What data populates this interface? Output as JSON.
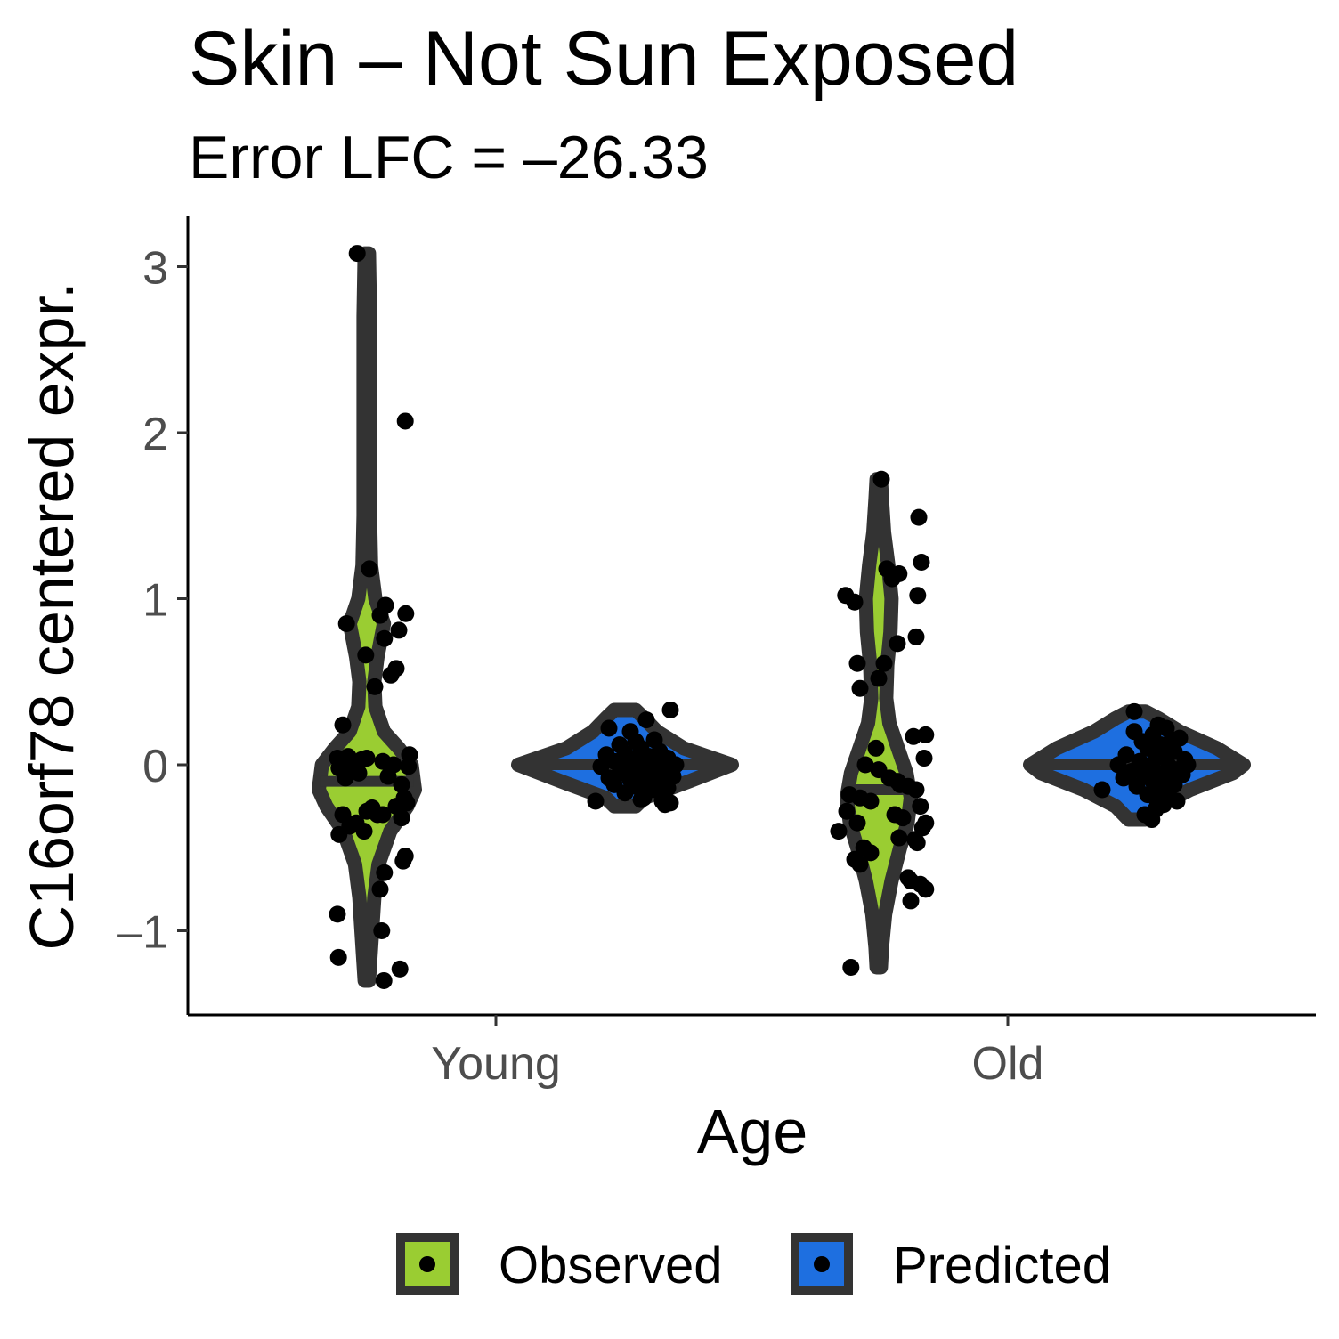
{
  "chart_data": {
    "type": "violin",
    "title": "Skin – Not Sun Exposed",
    "subtitle": "Error LFC = –26.33",
    "xlabel": "Age",
    "ylabel": "C16orf78 centered expr.",
    "categories": [
      "Young",
      "Old"
    ],
    "ylim": [
      -1.5,
      3.3
    ],
    "yticks": [
      -1,
      0,
      1,
      2,
      3
    ],
    "ytick_labels": [
      "–1",
      "0",
      "1",
      "2",
      "3"
    ],
    "grid": false,
    "legend_position": "bottom",
    "colors": {
      "Observed": "#9acd32",
      "Predicted": "#1e6fe0",
      "outline": "#333333",
      "points": "#000000"
    },
    "series": [
      {
        "name": "Observed",
        "violins": [
          {
            "category": "Young",
            "median": -0.1,
            "min": -1.3,
            "max": 3.08,
            "density": [
              [
                -1.3,
                0.02
              ],
              [
                -1.2,
                0.03
              ],
              [
                -1.0,
                0.05
              ],
              [
                -0.8,
                0.07
              ],
              [
                -0.6,
                0.11
              ],
              [
                -0.4,
                0.22
              ],
              [
                -0.25,
                0.38
              ],
              [
                -0.15,
                0.45
              ],
              [
                0.0,
                0.42
              ],
              [
                0.1,
                0.3
              ],
              [
                0.2,
                0.16
              ],
              [
                0.35,
                0.08
              ],
              [
                0.5,
                0.07
              ],
              [
                0.65,
                0.1
              ],
              [
                0.85,
                0.16
              ],
              [
                1.0,
                0.08
              ],
              [
                1.2,
                0.04
              ],
              [
                1.5,
                0.03
              ],
              [
                2.0,
                0.03
              ],
              [
                2.3,
                0.03
              ],
              [
                2.7,
                0.03
              ],
              [
                3.08,
                0.02
              ]
            ],
            "points": [
              [
                3.08,
                -0.18
              ],
              [
                2.07,
                0.72
              ],
              [
                1.18,
                0.05
              ],
              [
                0.96,
                0.35
              ],
              [
                0.9,
                0.25
              ],
              [
                0.91,
                0.73
              ],
              [
                0.85,
                -0.38
              ],
              [
                0.81,
                0.6
              ],
              [
                0.76,
                0.33
              ],
              [
                0.66,
                -0.02
              ],
              [
                0.58,
                0.55
              ],
              [
                0.54,
                0.45
              ],
              [
                0.47,
                0.15
              ],
              [
                0.24,
                -0.45
              ],
              [
                0.06,
                0.8
              ],
              [
                0.04,
                -0.55
              ],
              [
                0.05,
                -0.35
              ],
              [
                0.03,
                -0.1
              ],
              [
                0.04,
                0.0
              ],
              [
                0.02,
                0.3
              ],
              [
                0.0,
                0.5
              ],
              [
                -0.01,
                0.78
              ],
              [
                -0.02,
                -0.52
              ],
              [
                -0.03,
                -0.25
              ],
              [
                -0.05,
                -0.15
              ],
              [
                -0.07,
                0.4
              ],
              [
                -0.08,
                -0.4
              ],
              [
                -0.12,
                0.65
              ],
              [
                -0.2,
                0.7
              ],
              [
                -0.23,
                0.75
              ],
              [
                -0.25,
                0.55
              ],
              [
                -0.26,
                0.1
              ],
              [
                -0.28,
                0.0
              ],
              [
                -0.3,
                -0.45
              ],
              [
                -0.3,
                0.3
              ],
              [
                -0.32,
                0.65
              ],
              [
                -0.35,
                -0.2
              ],
              [
                -0.37,
                -0.32
              ],
              [
                -0.4,
                -0.05
              ],
              [
                -0.42,
                -0.52
              ],
              [
                -0.55,
                0.72
              ],
              [
                -0.58,
                0.68
              ],
              [
                -0.65,
                0.33
              ],
              [
                -0.75,
                0.25
              ],
              [
                -0.9,
                -0.55
              ],
              [
                -1.0,
                0.28
              ],
              [
                -1.16,
                -0.53
              ],
              [
                -1.23,
                0.62
              ],
              [
                -1.3,
                0.32
              ],
              [
                -0.3,
                0.2
              ]
            ]
          },
          {
            "category": "Old",
            "median": -0.15,
            "min": -1.22,
            "max": 1.72,
            "density": [
              [
                -1.22,
                0.02
              ],
              [
                -1.1,
                0.03
              ],
              [
                -0.9,
                0.06
              ],
              [
                -0.7,
                0.12
              ],
              [
                -0.5,
                0.2
              ],
              [
                -0.35,
                0.27
              ],
              [
                -0.2,
                0.3
              ],
              [
                -0.05,
                0.26
              ],
              [
                0.1,
                0.18
              ],
              [
                0.25,
                0.1
              ],
              [
                0.4,
                0.07
              ],
              [
                0.6,
                0.08
              ],
              [
                0.8,
                0.11
              ],
              [
                1.0,
                0.12
              ],
              [
                1.2,
                0.09
              ],
              [
                1.4,
                0.05
              ],
              [
                1.6,
                0.03
              ],
              [
                1.72,
                0.02
              ]
            ],
            "points": [
              [
                1.72,
                0.05
              ],
              [
                1.49,
                0.75
              ],
              [
                1.22,
                0.8
              ],
              [
                1.18,
                0.15
              ],
              [
                1.15,
                0.38
              ],
              [
                1.12,
                0.25
              ],
              [
                1.02,
                -0.62
              ],
              [
                1.02,
                0.73
              ],
              [
                0.98,
                -0.45
              ],
              [
                0.77,
                0.7
              ],
              [
                0.73,
                0.35
              ],
              [
                0.61,
                -0.4
              ],
              [
                0.61,
                0.1
              ],
              [
                0.52,
                0.0
              ],
              [
                0.46,
                -0.35
              ],
              [
                0.18,
                0.88
              ],
              [
                0.17,
                0.65
              ],
              [
                0.1,
                -0.05
              ],
              [
                0.04,
                0.85
              ],
              [
                0.0,
                -0.25
              ],
              [
                -0.03,
                0.0
              ],
              [
                -0.08,
                0.2
              ],
              [
                -0.1,
                0.35
              ],
              [
                -0.12,
                0.4
              ],
              [
                -0.13,
                0.55
              ],
              [
                -0.15,
                0.7
              ],
              [
                -0.18,
                -0.55
              ],
              [
                -0.2,
                -0.35
              ],
              [
                -0.22,
                -0.15
              ],
              [
                -0.25,
                0.78
              ],
              [
                -0.28,
                -0.6
              ],
              [
                -0.3,
                0.3
              ],
              [
                -0.32,
                0.45
              ],
              [
                -0.35,
                -0.4
              ],
              [
                -0.35,
                0.88
              ],
              [
                -0.38,
                0.82
              ],
              [
                -0.4,
                -0.75
              ],
              [
                -0.44,
                0.38
              ],
              [
                -0.47,
                0.72
              ],
              [
                -0.5,
                -0.28
              ],
              [
                -0.53,
                -0.15
              ],
              [
                -0.57,
                -0.45
              ],
              [
                -0.6,
                -0.35
              ],
              [
                -0.68,
                0.55
              ],
              [
                -0.7,
                0.6
              ],
              [
                -0.72,
                0.78
              ],
              [
                -0.75,
                0.88
              ],
              [
                -0.82,
                0.6
              ],
              [
                -1.22,
                -0.52
              ],
              [
                -0.45,
                0.68
              ]
            ]
          }
        ]
      },
      {
        "name": "Predicted",
        "violins": [
          {
            "category": "Young",
            "median": 0.0,
            "min": -0.25,
            "max": 0.33,
            "density": [
              [
                -0.25,
                0.1
              ],
              [
                -0.2,
                0.18
              ],
              [
                -0.1,
                0.6
              ],
              [
                0.0,
                1.0
              ],
              [
                0.1,
                0.55
              ],
              [
                0.2,
                0.3
              ],
              [
                0.28,
                0.18
              ],
              [
                0.33,
                0.1
              ]
            ],
            "points": [
              [
                0.33,
                0.85
              ],
              [
                0.27,
                0.4
              ],
              [
                0.22,
                -0.3
              ],
              [
                0.2,
                0.1
              ],
              [
                0.15,
                0.55
              ],
              [
                0.14,
                0.2
              ],
              [
                0.12,
                -0.1
              ],
              [
                0.1,
                0.3
              ],
              [
                0.08,
                0.65
              ],
              [
                0.07,
                0.0
              ],
              [
                0.06,
                -0.35
              ],
              [
                0.05,
                0.45
              ],
              [
                0.04,
                0.8
              ],
              [
                0.03,
                0.15
              ],
              [
                0.02,
                -0.2
              ],
              [
                0.01,
                0.6
              ],
              [
                0.0,
                0.35
              ],
              [
                -0.01,
                -0.45
              ],
              [
                -0.02,
                0.05
              ],
              [
                -0.03,
                0.75
              ],
              [
                -0.04,
                0.25
              ],
              [
                -0.05,
                -0.1
              ],
              [
                -0.06,
                0.5
              ],
              [
                -0.07,
                0.9
              ],
              [
                -0.08,
                -0.3
              ],
              [
                -0.09,
                0.1
              ],
              [
                -0.1,
                0.65
              ],
              [
                -0.11,
                0.4
              ],
              [
                -0.12,
                -0.2
              ],
              [
                -0.13,
                0.2
              ],
              [
                -0.14,
                0.8
              ],
              [
                -0.15,
                0.55
              ],
              [
                -0.17,
                0.0
              ],
              [
                -0.2,
                0.35
              ],
              [
                -0.21,
                0.3
              ],
              [
                -0.22,
                -0.55
              ],
              [
                -0.22,
                0.7
              ],
              [
                -0.23,
                0.85
              ],
              [
                -0.24,
                0.75
              ],
              [
                0.0,
                0.95
              ]
            ]
          },
          {
            "category": "Old",
            "median": 0.0,
            "min": -0.33,
            "max": 0.32,
            "density": [
              [
                -0.33,
                0.08
              ],
              [
                -0.25,
                0.2
              ],
              [
                -0.15,
                0.5
              ],
              [
                -0.05,
                0.9
              ],
              [
                0.0,
                1.0
              ],
              [
                0.1,
                0.75
              ],
              [
                0.2,
                0.4
              ],
              [
                0.28,
                0.2
              ],
              [
                0.32,
                0.08
              ]
            ],
            "points": [
              [
                0.32,
                -0.05
              ],
              [
                0.24,
                0.4
              ],
              [
                0.22,
                0.55
              ],
              [
                0.2,
                -0.05
              ],
              [
                0.18,
                0.3
              ],
              [
                0.16,
                0.8
              ],
              [
                0.15,
                0.65
              ],
              [
                0.14,
                0.1
              ],
              [
                0.12,
                0.45
              ],
              [
                0.1,
                0.2
              ],
              [
                0.08,
                0.7
              ],
              [
                0.06,
                -0.2
              ],
              [
                0.05,
                0.5
              ],
              [
                0.04,
                0.35
              ],
              [
                0.03,
                0.9
              ],
              [
                0.02,
                0.05
              ],
              [
                0.0,
                -0.35
              ],
              [
                -0.01,
                0.6
              ],
              [
                -0.02,
                0.25
              ],
              [
                -0.03,
                0.75
              ],
              [
                -0.04,
                -0.1
              ],
              [
                -0.05,
                0.4
              ],
              [
                -0.06,
                0.85
              ],
              [
                -0.07,
                0.15
              ],
              [
                -0.08,
                -0.25
              ],
              [
                -0.09,
                0.55
              ],
              [
                -0.1,
                0.3
              ],
              [
                -0.12,
                0.7
              ],
              [
                -0.13,
                0.0
              ],
              [
                -0.15,
                -0.65
              ],
              [
                -0.16,
                0.45
              ],
              [
                -0.18,
                0.2
              ],
              [
                -0.19,
                0.6
              ],
              [
                -0.2,
                0.35
              ],
              [
                -0.22,
                0.75
              ],
              [
                -0.24,
                0.5
              ],
              [
                -0.27,
                0.35
              ],
              [
                -0.3,
                0.15
              ],
              [
                -0.33,
                0.28
              ],
              [
                0.0,
                0.95
              ]
            ]
          }
        ]
      }
    ]
  }
}
